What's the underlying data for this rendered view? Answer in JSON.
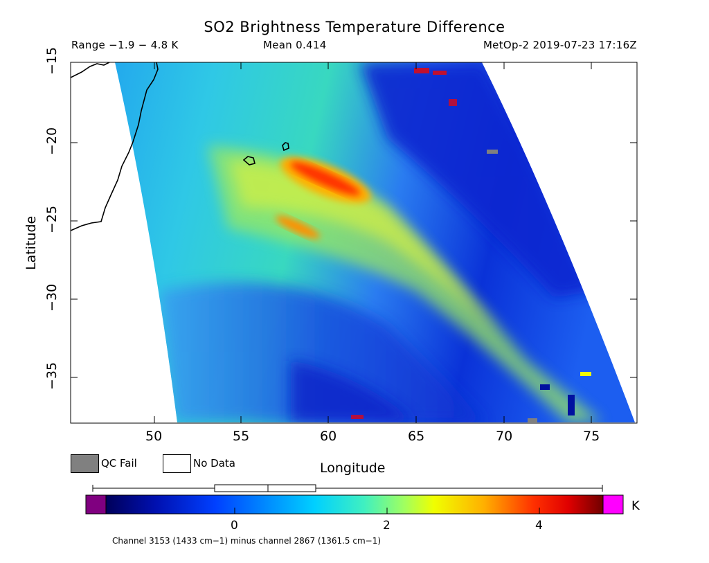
{
  "title": "SO2 Brightness Temperature Difference",
  "header": {
    "range": "Range −1.9 − 4.8 K",
    "mean": "Mean 0.414",
    "satellite": "MetOp-2 2019-07-23 17:16Z"
  },
  "axes": {
    "x_label": "Longitude",
    "y_label": "Latitude",
    "x_ticks": [
      "50",
      "55",
      "60",
      "65",
      "70",
      "75"
    ],
    "y_ticks": [
      "−15",
      "−20",
      "−25",
      "−30",
      "−35"
    ]
  },
  "legend": {
    "qc_fail_label": "QC Fail",
    "no_data_label": "No Data",
    "qc_fail_color": "#808080",
    "no_data_color": "#ffffff"
  },
  "colorbar": {
    "unit": "K",
    "ticks": [
      "0",
      "2",
      "4"
    ],
    "caption": "Channel 3153 (1433 cm−1) minus channel 2867 (1361.5 cm−1)",
    "under_color": "#800080",
    "over_color": "#ff00ff"
  },
  "map": {
    "lon_range": [
      45.2,
      77.5
    ],
    "lat_range": [
      -38,
      -15
    ],
    "features": [
      "Madagascar coastline",
      "Réunion",
      "Mauritius"
    ]
  }
}
